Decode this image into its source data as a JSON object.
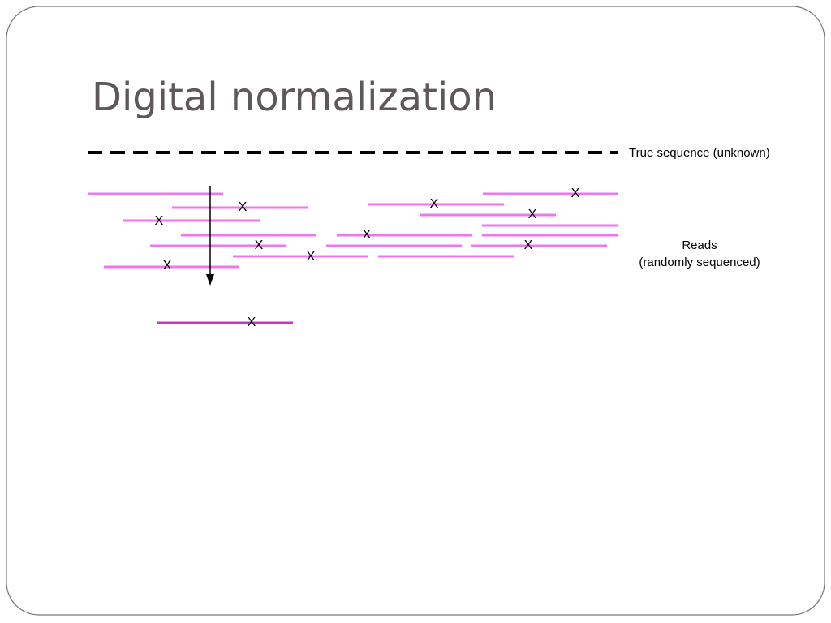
{
  "title": "Digital normalization",
  "true_sequence_label": "True sequence (unknown)",
  "reads_label": [
    "Reads",
    "(randomly sequenced)"
  ],
  "error_marks": [
    "X",
    "X",
    "X",
    "X",
    "X",
    "X",
    "X",
    "X",
    "X",
    "X",
    "X"
  ]
}
